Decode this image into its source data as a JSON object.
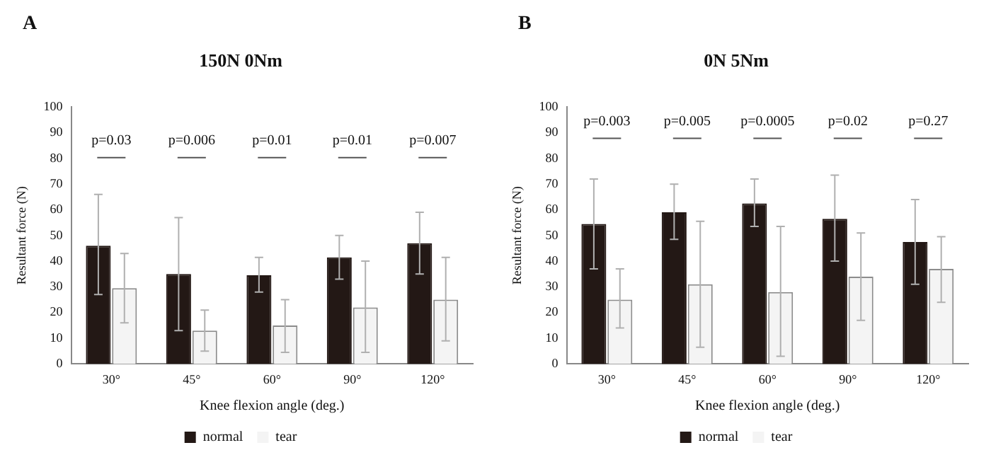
{
  "chart_data": [
    {
      "type": "bar",
      "title": "150N 0Nm",
      "xlabel": "Knee flexion angle (deg.)",
      "ylabel": "Resultant force (N)",
      "categories": [
        "30°",
        "45°",
        "60°",
        "90°",
        "120°"
      ],
      "series": [
        {
          "name": "normal",
          "color": "#231815",
          "values": [
            46,
            35,
            34.5,
            41.5,
            47
          ],
          "errors": [
            [
              27,
              66
            ],
            [
              13,
              57
            ],
            [
              28,
              41.5
            ],
            [
              33,
              50
            ],
            [
              35,
              59
            ]
          ]
        },
        {
          "name": "tear",
          "color": "#f4f4f4",
          "values": [
            29.5,
            13,
            15,
            22,
            25
          ],
          "errors": [
            [
              16,
              43
            ],
            [
              5,
              21
            ],
            [
              4.5,
              25
            ],
            [
              4.5,
              40
            ],
            [
              9,
              41.5
            ]
          ]
        }
      ],
      "ylim": [
        0,
        100
      ],
      "yticks": [
        0,
        10,
        20,
        30,
        40,
        50,
        60,
        70,
        80,
        90,
        100
      ],
      "grid": false,
      "legend": "bottom",
      "annotations": [
        "A",
        "p=0.03",
        "p=0.006",
        "p=0.01",
        "p=0.01",
        "p=0.007"
      ]
    },
    {
      "type": "bar",
      "title": "0N 5Nm",
      "xlabel": "Knee flexion angle (deg.)",
      "ylabel": "Resultant force (N)",
      "categories": [
        "30°",
        "45°",
        "60°",
        "90°",
        "120°"
      ],
      "series": [
        {
          "name": "normal",
          "color": "#231815",
          "values": [
            54.5,
            59,
            62.5,
            56.5,
            47.5
          ],
          "errors": [
            [
              37,
              72
            ],
            [
              48.5,
              70
            ],
            [
              53.5,
              72
            ],
            [
              40,
              73.5
            ],
            [
              31,
              64
            ]
          ]
        },
        {
          "name": "tear",
          "color": "#f4f4f4",
          "values": [
            25,
            31,
            28,
            34,
            37
          ],
          "errors": [
            [
              14,
              37
            ],
            [
              6.5,
              55.5
            ],
            [
              3,
              53.5
            ],
            [
              17,
              51
            ],
            [
              24,
              49.5
            ]
          ]
        }
      ],
      "ylim": [
        0,
        100
      ],
      "yticks": [
        0,
        10,
        20,
        30,
        40,
        50,
        60,
        70,
        80,
        90,
        100
      ],
      "grid": false,
      "legend": "bottom",
      "annotations": [
        "B",
        "p=0.003",
        "p=0.005",
        "p=0.0005",
        "p=0.02",
        "p=0.27"
      ]
    }
  ]
}
